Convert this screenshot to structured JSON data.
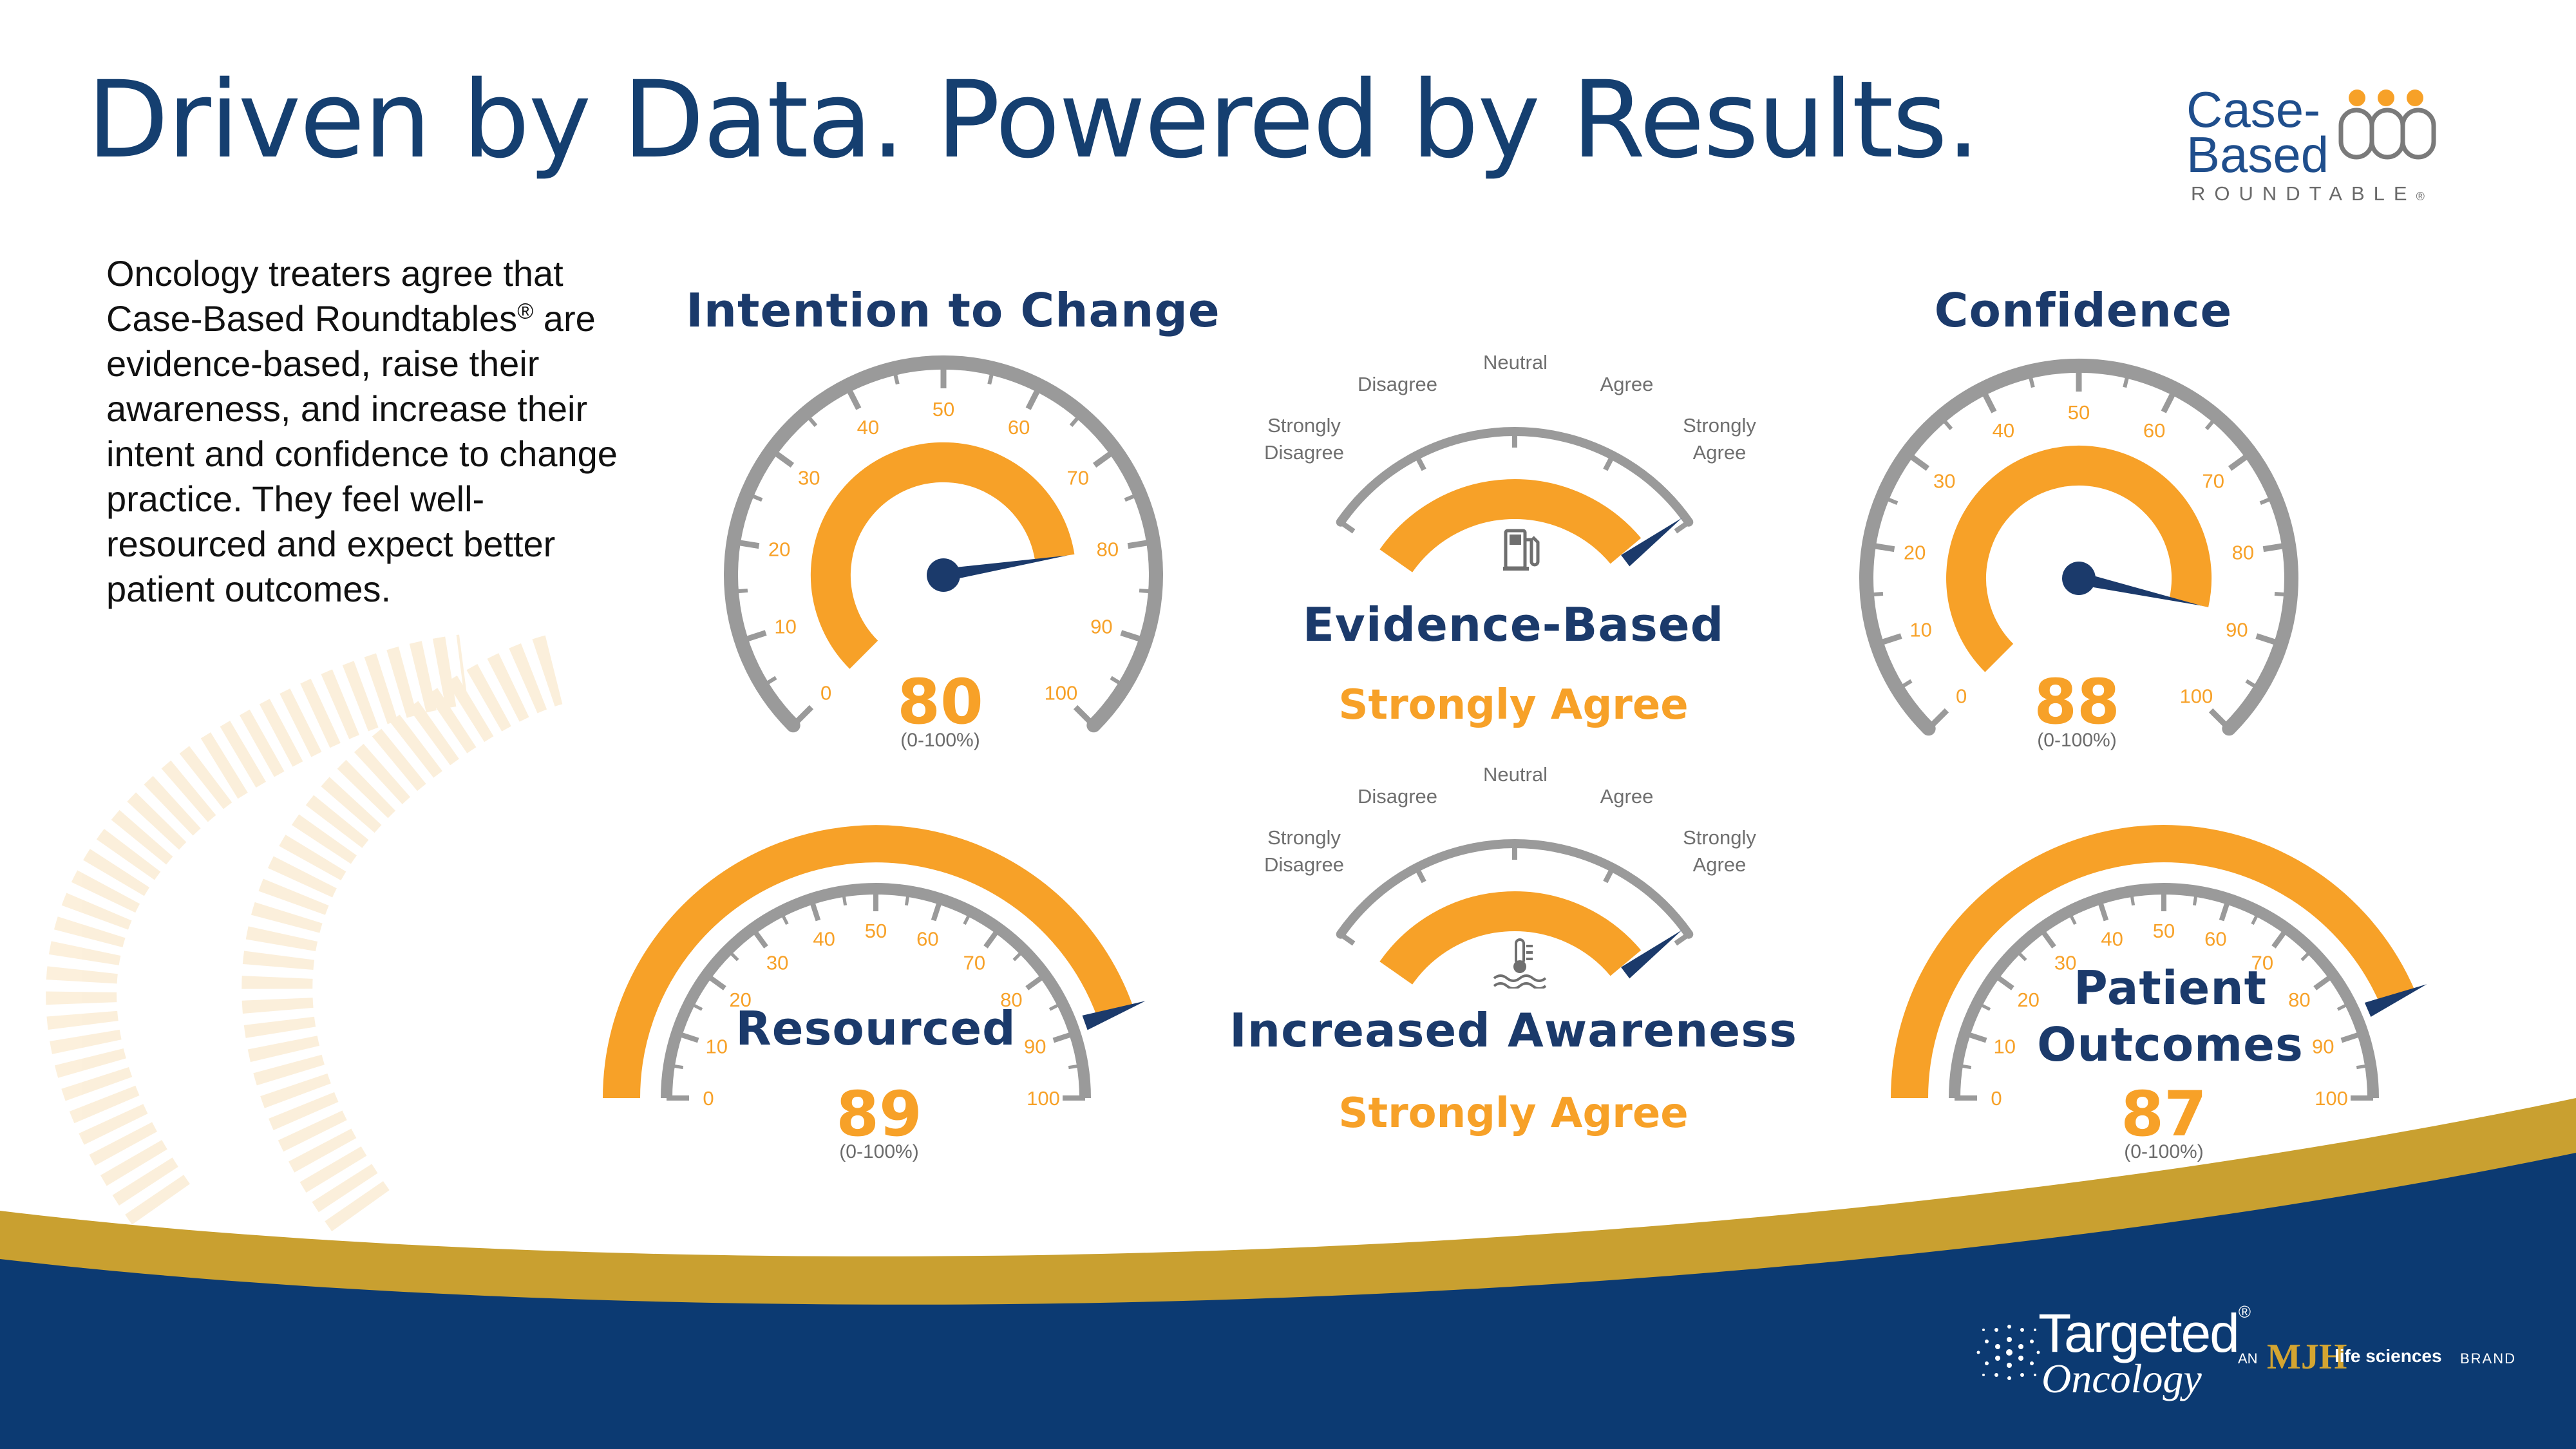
{
  "title": "Driven by Data. Powered by Results.",
  "intro": {
    "before_reg": "Oncology treaters agree that Case-Based Roundtables",
    "reg_mark": "®",
    "after_reg": " are evidence-based, raise their awareness, and increase their intent and confidence to change practice. They feel well-resourced and expect better patient outcomes."
  },
  "logo": {
    "line1": "Case-",
    "line2": "Based",
    "line3": "ROUNDTABLE",
    "reg_mark": "®"
  },
  "gauges": {
    "intention": {
      "title": "Intention to Change",
      "value": 80,
      "value_text": "80",
      "range": "(0-100%)"
    },
    "confidence": {
      "title": "Confidence",
      "value": 88,
      "value_text": "88",
      "range": "(0-100%)"
    },
    "resourced": {
      "title": "Resourced",
      "value": 89,
      "value_text": "89",
      "range": "(0-100%)"
    },
    "outcomes": {
      "title_line1": "Patient",
      "title_line2": "Outcomes",
      "value": 87,
      "value_text": "87",
      "range": "(0-100%)"
    }
  },
  "scale_ticks": [
    "0",
    "10",
    "20",
    "30",
    "40",
    "50",
    "60",
    "70",
    "80",
    "90",
    "100"
  ],
  "agreement": {
    "evidence": {
      "title": "Evidence-Based",
      "result": "Strongly Agree",
      "icon": "fuel-pump-icon"
    },
    "awareness": {
      "title": "Increased Awareness",
      "result": "Strongly Agree",
      "icon": "thermometer-icon"
    },
    "labels": {
      "strongly_disagree_1": "Strongly",
      "strongly_disagree_2": "Disagree",
      "disagree": "Disagree",
      "neutral": "Neutral",
      "agree": "Agree",
      "strongly_agree_1": "Strongly",
      "strongly_agree_2": "Agree"
    }
  },
  "footer": {
    "brand_line1": "Targeted",
    "brand_line2": "Oncology",
    "brand_reg": "®",
    "an": "AN",
    "mjh": "MJH",
    "life_sciences": "life sciences",
    "brand": "BRAND"
  },
  "colors": {
    "navy": "#153f70",
    "orange": "#f7a128",
    "gray": "#9a9a9a",
    "needle": "#1b3a6b",
    "footer_blue": "#0c3a72",
    "gold": "#c9a030"
  }
}
